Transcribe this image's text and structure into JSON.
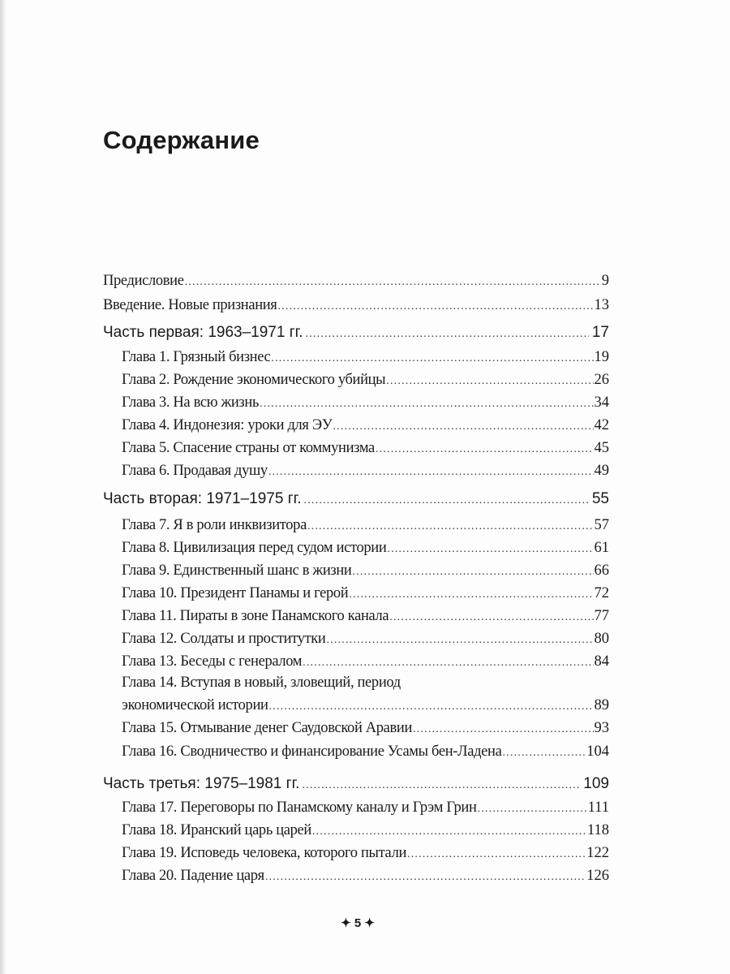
{
  "title": "Содержание",
  "entries": [
    {
      "level": "front",
      "text": "Предисловие",
      "page": "9"
    },
    {
      "level": "front",
      "text": "Введение. Новые признания",
      "page": "13"
    },
    {
      "level": "part",
      "text": "Часть первая: 1963–1971 гг.",
      "page": "17"
    },
    {
      "level": "chapter",
      "text": "Глава 1. Грязный бизнес",
      "page": "19"
    },
    {
      "level": "chapter",
      "text": "Глава 2. Рождение экономического убийцы",
      "page": "26"
    },
    {
      "level": "chapter",
      "text": "Глава 3. На всю жизнь",
      "page": "34"
    },
    {
      "level": "chapter",
      "text": "Глава 4. Индонезия: уроки для ЭУ",
      "page": "42"
    },
    {
      "level": "chapter",
      "text": "Глава 5. Спасение страны от коммунизма",
      "page": "45"
    },
    {
      "level": "chapter",
      "text": "Глава 6. Продавая душу",
      "page": "49"
    },
    {
      "level": "part",
      "text": "Часть вторая: 1971–1975 гг.",
      "page": "55"
    },
    {
      "level": "chapter",
      "text": "Глава 7. Я в роли инквизитора",
      "page": "57"
    },
    {
      "level": "chapter",
      "text": "Глава 8. Цивилизация перед судом истории",
      "page": "61"
    },
    {
      "level": "chapter",
      "text": "Глава 9. Единственный шанс в жизни",
      "page": "66"
    },
    {
      "level": "chapter",
      "text": "Глава 10. Президент Панамы и герой",
      "page": "72"
    },
    {
      "level": "chapter",
      "text": "Глава 11. Пираты в зоне Панамского канала",
      "page": "77"
    },
    {
      "level": "chapter",
      "text": "Глава 12. Солдаты и проститутки",
      "page": "80"
    },
    {
      "level": "chapter",
      "text": "Глава 13. Беседы с генералом",
      "page": "84"
    },
    {
      "level": "chapter",
      "text": "Глава 14. Вступая в новый, зловещий, период",
      "continuation": "экономической истории",
      "page": "89"
    },
    {
      "level": "chapter",
      "text": "Глава 15. Отмывание денег Саудовской Аравии",
      "page": "93"
    },
    {
      "level": "chapter",
      "text": "Глава 16. Сводничество и финансирование Усамы бен-Ладена",
      "page": "104"
    },
    {
      "level": "part",
      "text": "Часть третья: 1975–1981 гг.",
      "page": "109"
    },
    {
      "level": "chapter",
      "text": "Глава 17. Переговоры по Панамскому каналу и Грэм Грин",
      "page": "111"
    },
    {
      "level": "chapter",
      "text": "Глава 18. Иранский царь царей",
      "page": "118"
    },
    {
      "level": "chapter",
      "text": "Глава 19. Исповедь человека, которого пытали",
      "page": "122"
    },
    {
      "level": "chapter",
      "text": "Глава 20. Падение царя",
      "page": "126"
    }
  ],
  "page_number": "✦ 5 ✦"
}
